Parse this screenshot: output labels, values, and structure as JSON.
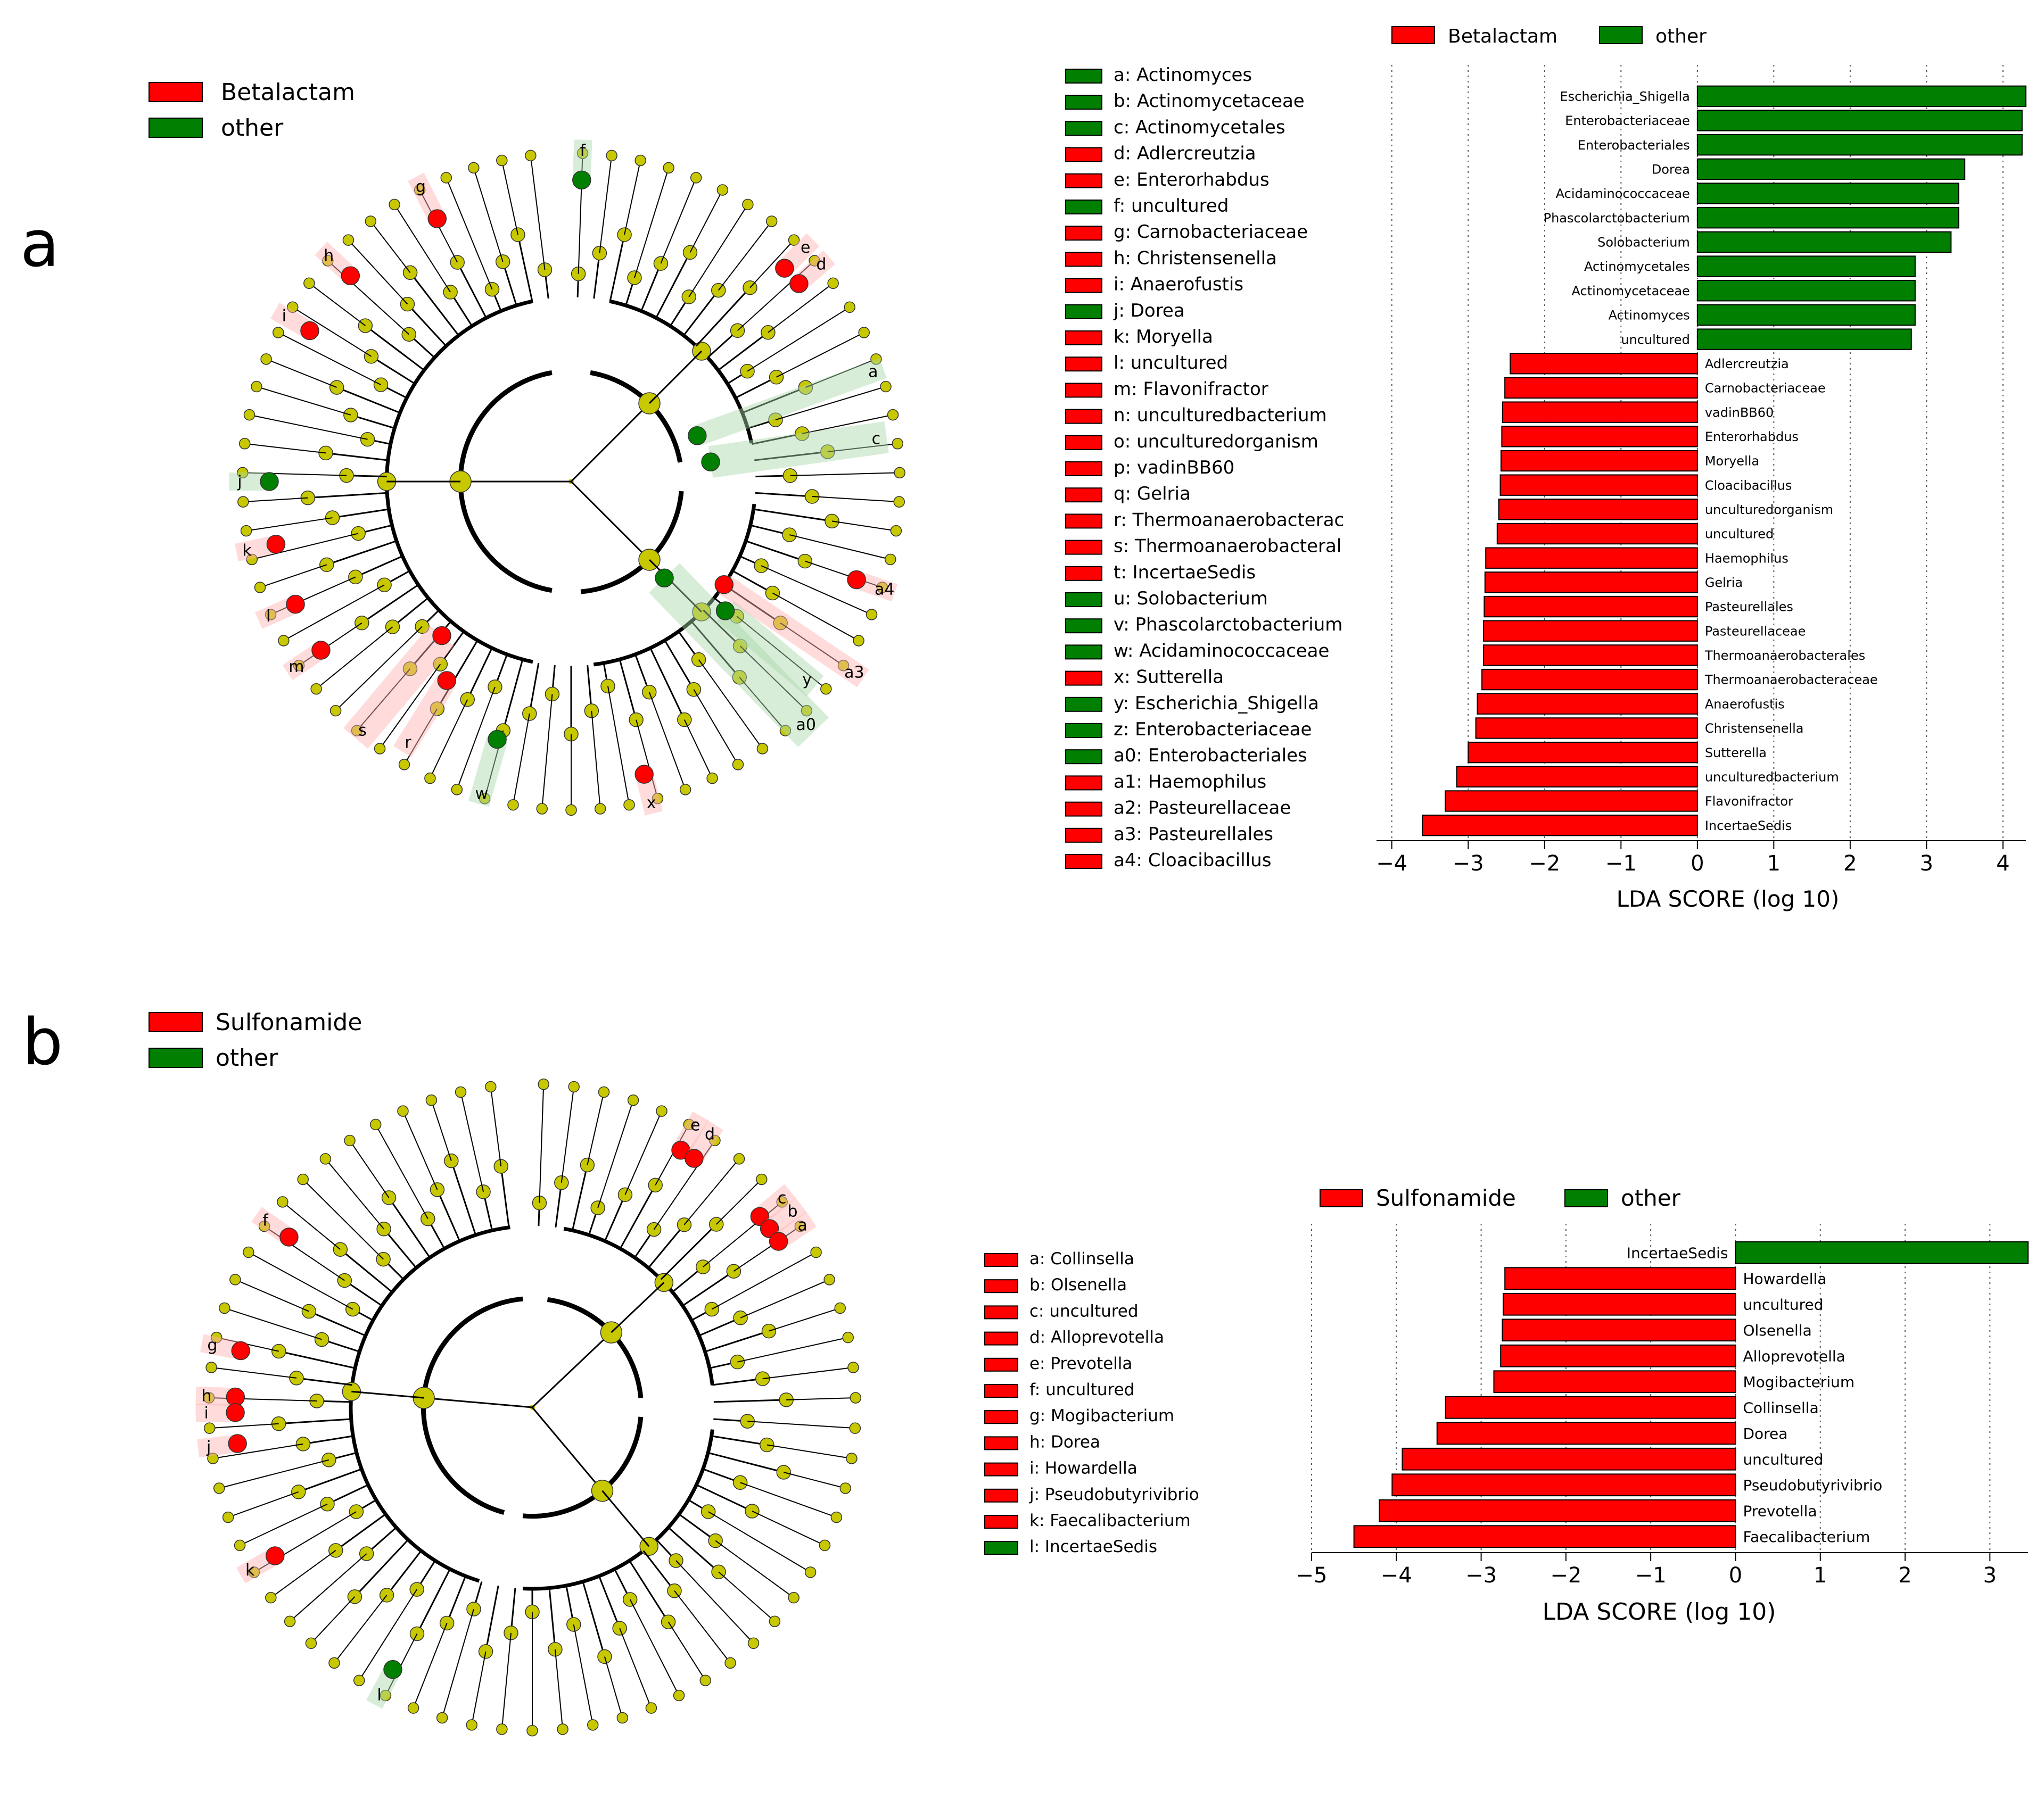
{
  "colors": {
    "enriched": "#ff0000",
    "other": "#007f00",
    "node": "#c8c800",
    "edge": "#000000",
    "shade_red": "#ffb0b0",
    "shade_green": "#a8d8a8"
  },
  "panel_a": {
    "label": "a",
    "legend": [
      {
        "name": "Betalactam",
        "color": "#ff0000"
      },
      {
        "name": "other",
        "color": "#007f00"
      }
    ],
    "cladogram": {
      "clade_keys": [
        {
          "key": "a",
          "name": "Actinomyces",
          "group": "other",
          "text": "a: Actinomyces"
        },
        {
          "key": "b",
          "name": "Actinomycetaceae",
          "group": "other",
          "text": "b: Actinomycetaceae"
        },
        {
          "key": "c",
          "name": "Actinomycetales",
          "group": "other",
          "text": "c: Actinomycetales"
        },
        {
          "key": "d",
          "name": "Adlercreutzia",
          "group": "enriched",
          "text": "d: Adlercreutzia"
        },
        {
          "key": "e",
          "name": "Enterorhabdus",
          "group": "enriched",
          "text": "e: Enterorhabdus"
        },
        {
          "key": "f",
          "name": "uncultured",
          "group": "other",
          "text": "f: uncultured"
        },
        {
          "key": "g",
          "name": "Carnobacteriaceae",
          "group": "enriched",
          "text": "g: Carnobacteriaceae"
        },
        {
          "key": "h",
          "name": "Christensenella",
          "group": "enriched",
          "text": "h: Christensenella"
        },
        {
          "key": "i",
          "name": "Anaerofustis",
          "group": "enriched",
          "text": "i: Anaerofustis"
        },
        {
          "key": "j",
          "name": "Dorea",
          "group": "other",
          "text": "j: Dorea"
        },
        {
          "key": "k",
          "name": "Moryella",
          "group": "enriched",
          "text": "k: Moryella"
        },
        {
          "key": "l",
          "name": "uncultured",
          "group": "enriched",
          "text": "l: uncultured"
        },
        {
          "key": "m",
          "name": "Flavonifractor",
          "group": "enriched",
          "text": "m: Flavonifractor"
        },
        {
          "key": "n",
          "name": "unculturedbacterium",
          "group": "enriched",
          "text": "n: unculturedbacterium"
        },
        {
          "key": "o",
          "name": "unculturedorganism",
          "group": "enriched",
          "text": "o: unculturedorganism"
        },
        {
          "key": "p",
          "name": "vadinBB60",
          "group": "enriched",
          "text": "p: vadinBB60"
        },
        {
          "key": "q",
          "name": "Gelria",
          "group": "enriched",
          "text": "q: Gelria"
        },
        {
          "key": "r",
          "name": "Thermoanaerobacterac",
          "group": "enriched",
          "text": "r: Thermoanaerobacterac"
        },
        {
          "key": "s",
          "name": "Thermoanaerobacteral",
          "group": "enriched",
          "text": "s: Thermoanaerobacteral"
        },
        {
          "key": "t",
          "name": "IncertaeSedis",
          "group": "enriched",
          "text": "t: IncertaeSedis"
        },
        {
          "key": "u",
          "name": "Solobacterium",
          "group": "other",
          "text": "u: Solobacterium"
        },
        {
          "key": "v",
          "name": "Phascolarctobacterium",
          "group": "other",
          "text": "v: Phascolarctobacterium"
        },
        {
          "key": "w",
          "name": "Acidaminococcaceae",
          "group": "other",
          "text": "w: Acidaminococcaceae"
        },
        {
          "key": "x",
          "name": "Sutterella",
          "group": "enriched",
          "text": "x: Sutterella"
        },
        {
          "key": "y",
          "name": "Escherichia_Shigella",
          "group": "other",
          "text": "y: Escherichia_Shigella"
        },
        {
          "key": "z",
          "name": "Enterobacteriaceae",
          "group": "other",
          "text": "z: Enterobacteriaceae"
        },
        {
          "key": "a0",
          "name": "Enterobacteriales",
          "group": "other",
          "text": "a0: Enterobacteriales"
        },
        {
          "key": "a1",
          "name": "Haemophilus",
          "group": "enriched",
          "text": "a1: Haemophilus"
        },
        {
          "key": "a2",
          "name": "Pasteurellaceae",
          "group": "enriched",
          "text": "a2: Pasteurellaceae"
        },
        {
          "key": "a3",
          "name": "Pasteurellales",
          "group": "enriched",
          "text": "a3: Pasteurellales"
        },
        {
          "key": "a4",
          "name": "Cloacibacillus",
          "group": "enriched",
          "text": "a4: Cloacibacillus"
        }
      ]
    }
  },
  "panel_b": {
    "label": "b",
    "legend": [
      {
        "name": "Sulfonamide",
        "color": "#ff0000"
      },
      {
        "name": "other",
        "color": "#007f00"
      }
    ],
    "cladogram": {
      "clade_keys": [
        {
          "key": "a",
          "name": "Collinsella",
          "group": "enriched",
          "text": "a: Collinsella"
        },
        {
          "key": "b",
          "name": "Olsenella",
          "group": "enriched",
          "text": "b: Olsenella"
        },
        {
          "key": "c",
          "name": "uncultured",
          "group": "enriched",
          "text": "c: uncultured"
        },
        {
          "key": "d",
          "name": "Alloprevotella",
          "group": "enriched",
          "text": "d: Alloprevotella"
        },
        {
          "key": "e",
          "name": "Prevotella",
          "group": "enriched",
          "text": "e: Prevotella"
        },
        {
          "key": "f",
          "name": "uncultured",
          "group": "enriched",
          "text": "f: uncultured"
        },
        {
          "key": "g",
          "name": "Mogibacterium",
          "group": "enriched",
          "text": "g: Mogibacterium"
        },
        {
          "key": "h",
          "name": "Dorea",
          "group": "enriched",
          "text": "h: Dorea"
        },
        {
          "key": "i",
          "name": "Howardella",
          "group": "enriched",
          "text": "i: Howardella"
        },
        {
          "key": "j",
          "name": "Pseudobutyrivibrio",
          "group": "enriched",
          "text": "j: Pseudobutyrivibrio"
        },
        {
          "key": "k",
          "name": "Faecalibacterium",
          "group": "enriched",
          "text": "k: Faecalibacterium"
        },
        {
          "key": "l",
          "name": "IncertaeSedis",
          "group": "other",
          "text": "l: IncertaeSedis"
        }
      ]
    }
  },
  "chart_data": [
    {
      "type": "bar",
      "orientation": "horizontal",
      "title": "",
      "xlabel": "LDA SCORE (log 10)",
      "ylabel": "",
      "xlim": [
        -4.2,
        4.3
      ],
      "xticks": [
        -4,
        -3,
        -2,
        -1,
        0,
        1,
        2,
        3,
        4
      ],
      "xtick_labels": [
        "−4",
        "−3",
        "−2",
        "−1",
        "0",
        "1",
        "2",
        "3",
        "4"
      ],
      "grid": "vertical dotted",
      "legend_position": "top",
      "legend": [
        {
          "name": "Betalactam",
          "color": "#ff0000"
        },
        {
          "name": "other",
          "color": "#007f00"
        }
      ],
      "bars": [
        {
          "label": "Escherichia_Shigella",
          "value": 4.3,
          "group": "other"
        },
        {
          "label": "Enterobacteriaceae",
          "value": 4.25,
          "group": "other"
        },
        {
          "label": "Enterobacteriales",
          "value": 4.25,
          "group": "other"
        },
        {
          "label": "Dorea",
          "value": 3.5,
          "group": "other"
        },
        {
          "label": "Acidaminococcaceae",
          "value": 3.42,
          "group": "other"
        },
        {
          "label": "Phascolarctobacterium",
          "value": 3.42,
          "group": "other"
        },
        {
          "label": "Solobacterium",
          "value": 3.32,
          "group": "other"
        },
        {
          "label": "Actinomycetales",
          "value": 2.85,
          "group": "other"
        },
        {
          "label": "Actinomycetaceae",
          "value": 2.85,
          "group": "other"
        },
        {
          "label": "Actinomyces",
          "value": 2.85,
          "group": "other"
        },
        {
          "label": "uncultured",
          "value": 2.8,
          "group": "other"
        },
        {
          "label": "Adlercreutzia",
          "value": -2.45,
          "group": "enriched"
        },
        {
          "label": "Carnobacteriaceae",
          "value": -2.52,
          "group": "enriched"
        },
        {
          "label": "vadinBB60",
          "value": -2.55,
          "group": "enriched"
        },
        {
          "label": "Enterorhabdus",
          "value": -2.56,
          "group": "enriched"
        },
        {
          "label": "Moryella",
          "value": -2.57,
          "group": "enriched"
        },
        {
          "label": "Cloacibacillus",
          "value": -2.58,
          "group": "enriched"
        },
        {
          "label": "unculturedorganism",
          "value": -2.6,
          "group": "enriched"
        },
        {
          "label": "uncultured",
          "value": -2.62,
          "group": "enriched"
        },
        {
          "label": "Haemophilus",
          "value": -2.77,
          "group": "enriched"
        },
        {
          "label": "Gelria",
          "value": -2.78,
          "group": "enriched"
        },
        {
          "label": "Pasteurellales",
          "value": -2.79,
          "group": "enriched"
        },
        {
          "label": "Pasteurellaceae",
          "value": -2.8,
          "group": "enriched"
        },
        {
          "label": "Thermoanaerobacterales",
          "value": -2.8,
          "group": "enriched"
        },
        {
          "label": "Thermoanaerobacteraceae",
          "value": -2.82,
          "group": "enriched"
        },
        {
          "label": "Anaerofustis",
          "value": -2.88,
          "group": "enriched"
        },
        {
          "label": "Christensenella",
          "value": -2.9,
          "group": "enriched"
        },
        {
          "label": "Sutterella",
          "value": -3.0,
          "group": "enriched"
        },
        {
          "label": "unculturedbacterium",
          "value": -3.15,
          "group": "enriched"
        },
        {
          "label": "Flavonifractor",
          "value": -3.3,
          "group": "enriched"
        },
        {
          "label": "IncertaeSedis",
          "value": -3.6,
          "group": "enriched"
        }
      ]
    },
    {
      "type": "bar",
      "orientation": "horizontal",
      "title": "",
      "xlabel": "LDA SCORE (log 10)",
      "ylabel": "",
      "xlim": [
        -5.0,
        3.45
      ],
      "xticks": [
        -5,
        -4,
        -3,
        -2,
        -1,
        0,
        1,
        2,
        3
      ],
      "xtick_labels": [
        "−5",
        "−4",
        "−3",
        "−2",
        "−1",
        "0",
        "1",
        "2",
        "3"
      ],
      "grid": "vertical dotted",
      "legend_position": "top",
      "legend": [
        {
          "name": "Sulfonamide",
          "color": "#ff0000"
        },
        {
          "name": "other",
          "color": "#007f00"
        }
      ],
      "bars": [
        {
          "label": "IncertaeSedis",
          "value": 3.45,
          "group": "other"
        },
        {
          "label": "Howardella",
          "value": -2.72,
          "group": "enriched"
        },
        {
          "label": "uncultured",
          "value": -2.74,
          "group": "enriched"
        },
        {
          "label": "Olsenella",
          "value": -2.75,
          "group": "enriched"
        },
        {
          "label": "Alloprevotella",
          "value": -2.77,
          "group": "enriched"
        },
        {
          "label": "Mogibacterium",
          "value": -2.85,
          "group": "enriched"
        },
        {
          "label": "Collinsella",
          "value": -3.42,
          "group": "enriched"
        },
        {
          "label": "Dorea",
          "value": -3.52,
          "group": "enriched"
        },
        {
          "label": "uncultured",
          "value": -3.93,
          "group": "enriched"
        },
        {
          "label": "Pseudobutyrivibrio",
          "value": -4.05,
          "group": "enriched"
        },
        {
          "label": "Prevotella",
          "value": -4.2,
          "group": "enriched"
        },
        {
          "label": "Faecalibacterium",
          "value": -4.5,
          "group": "enriched"
        }
      ]
    }
  ]
}
